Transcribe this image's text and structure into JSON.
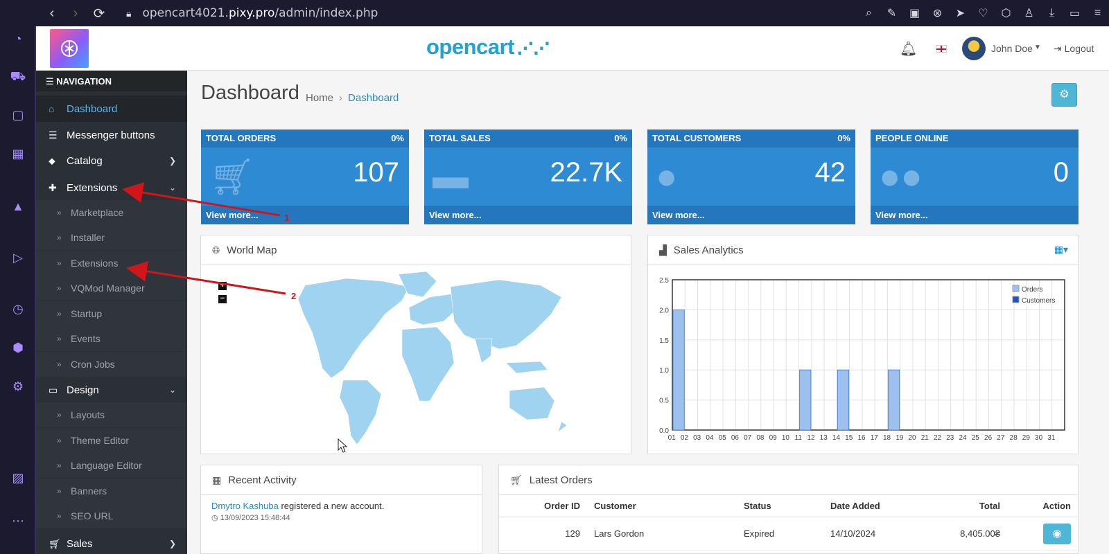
{
  "browser": {
    "url_prefix": "opencart4021.",
    "url_domain": "pixy.pro",
    "url_path": "/admin/index.php"
  },
  "header": {
    "brand": "opencart",
    "user_name": "John Doe",
    "logout_label": "Logout"
  },
  "sidebar": {
    "title": "NAVIGATION",
    "items": {
      "dashboard": "Dashboard",
      "messenger": "Messenger buttons",
      "catalog": "Catalog",
      "extensions": "Extensions",
      "design": "Design",
      "sales": "Sales"
    },
    "extensions_sub": [
      "Marketplace",
      "Installer",
      "Extensions",
      "VQMod Manager",
      "Startup",
      "Events",
      "Cron Jobs"
    ],
    "design_sub": [
      "Layouts",
      "Theme Editor",
      "Language Editor",
      "Banners",
      "SEO URL"
    ]
  },
  "page": {
    "title": "Dashboard",
    "breadcrumb_home": "Home",
    "breadcrumb_current": "Dashboard"
  },
  "tiles": [
    {
      "title": "TOTAL ORDERS",
      "percent": "0%",
      "value": "107",
      "link": "View more..."
    },
    {
      "title": "TOTAL SALES",
      "percent": "0%",
      "value": "22.7K",
      "link": "View more..."
    },
    {
      "title": "TOTAL CUSTOMERS",
      "percent": "0%",
      "value": "42",
      "link": "View more..."
    },
    {
      "title": "PEOPLE ONLINE",
      "percent": "",
      "value": "0",
      "link": "View more..."
    }
  ],
  "world_map": {
    "title": "World Map",
    "zoom_in": "+",
    "zoom_out": "−"
  },
  "chart_data": {
    "type": "bar",
    "title": "Sales Analytics",
    "categories": [
      "01",
      "02",
      "03",
      "04",
      "05",
      "06",
      "07",
      "08",
      "09",
      "10",
      "11",
      "12",
      "13",
      "14",
      "15",
      "16",
      "17",
      "18",
      "19",
      "20",
      "21",
      "22",
      "23",
      "24",
      "25",
      "26",
      "27",
      "28",
      "29",
      "30",
      "31"
    ],
    "series": [
      {
        "name": "Orders",
        "values": [
          2,
          0,
          0,
          0,
          0,
          0,
          0,
          0,
          0,
          0,
          1,
          0,
          0,
          1,
          0,
          0,
          0,
          1,
          0,
          0,
          0,
          0,
          0,
          0,
          0,
          0,
          0,
          0,
          0,
          0,
          0
        ]
      },
      {
        "name": "Customers",
        "values": [
          0,
          0,
          0,
          0,
          0,
          0,
          0,
          0,
          0,
          0,
          0,
          0,
          0,
          0,
          0,
          0,
          0,
          0,
          0,
          0,
          0,
          0,
          0,
          0,
          0,
          0,
          0,
          0,
          0,
          0,
          0
        ]
      }
    ],
    "y_ticks": [
      "0.0",
      "0.5",
      "1.0",
      "1.5",
      "2.0",
      "2.5"
    ],
    "ylim": [
      0,
      2.5
    ],
    "grid": true,
    "legend": "top-right",
    "colors": {
      "orders": "#9cc1ee",
      "orders_border": "#4f86d6",
      "customers": "#1a56c7"
    }
  },
  "recent_activity": {
    "title": "Recent Activity",
    "link": "Dmytro Kashuba",
    "text": "registered a new account.",
    "time": "13/09/2023 15:48:44"
  },
  "latest_orders": {
    "title": "Latest Orders",
    "headers": {
      "order_id": "Order ID",
      "customer": "Customer",
      "status": "Status",
      "date": "Date Added",
      "total": "Total",
      "action": "Action"
    },
    "rows": [
      {
        "order_id": "129",
        "customer": "Lars Gordon",
        "status": "Expired",
        "date": "14/10/2024",
        "total": "8,405.00₴"
      }
    ]
  },
  "annotations": {
    "arrow1": "1",
    "arrow2": "2"
  }
}
